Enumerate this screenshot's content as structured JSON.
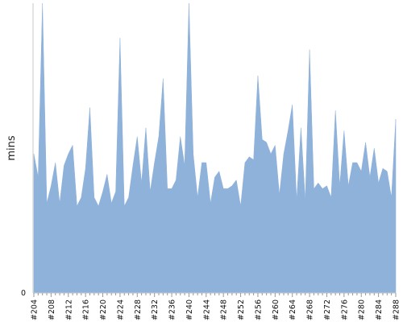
{
  "chart_data": {
    "type": "area",
    "title": "",
    "xlabel": "",
    "ylabel": "mins",
    "y_tick_labels": [
      "0"
    ],
    "ylim": [
      0,
      100
    ],
    "color": "#8fb2db",
    "grid": false,
    "x": [
      "#204",
      "#205",
      "#206",
      "#207",
      "#208",
      "#209",
      "#210",
      "#211",
      "#212",
      "#213",
      "#214",
      "#215",
      "#216",
      "#217",
      "#218",
      "#219",
      "#220",
      "#221",
      "#222",
      "#223",
      "#224",
      "#225",
      "#226",
      "#227",
      "#228",
      "#229",
      "#230",
      "#231",
      "#232",
      "#233",
      "#234",
      "#235",
      "#236",
      "#237",
      "#238",
      "#239",
      "#240",
      "#241",
      "#242",
      "#243",
      "#244",
      "#245",
      "#246",
      "#247",
      "#248",
      "#249",
      "#250",
      "#251",
      "#252",
      "#253",
      "#254",
      "#255",
      "#256",
      "#257",
      "#258",
      "#259",
      "#260",
      "#261",
      "#262",
      "#263",
      "#264",
      "#265",
      "#266",
      "#267",
      "#268",
      "#269",
      "#270",
      "#271",
      "#272",
      "#273",
      "#274",
      "#275",
      "#276",
      "#277",
      "#278",
      "#279",
      "#280",
      "#281",
      "#282",
      "#283",
      "#284",
      "#285",
      "#286",
      "#287",
      "#288"
    ],
    "x_tick_labels": [
      "#204",
      "#208",
      "#212",
      "#216",
      "#220",
      "#224",
      "#228",
      "#232",
      "#236",
      "#240",
      "#244",
      "#248",
      "#252",
      "#256",
      "#260",
      "#264",
      "#268",
      "#272",
      "#276",
      "#280",
      "#284",
      "#288"
    ],
    "values": [
      48,
      40,
      100,
      31,
      37,
      45,
      31,
      44,
      48,
      51,
      30,
      33,
      43,
      64,
      33,
      30,
      35,
      41,
      31,
      35,
      88,
      30,
      33,
      44,
      54,
      38,
      57,
      35,
      45,
      54,
      74,
      36,
      36,
      39,
      54,
      44,
      100,
      48,
      33,
      45,
      45,
      31,
      40,
      42,
      36,
      36,
      37,
      39,
      30,
      45,
      47,
      46,
      75,
      53,
      52,
      48,
      51,
      34,
      48,
      56,
      65,
      32,
      57,
      32,
      84,
      36,
      38,
      36,
      37,
      33,
      63,
      37,
      56,
      37,
      45,
      45,
      42,
      52,
      40,
      50,
      38,
      43,
      42,
      33,
      60
    ]
  }
}
